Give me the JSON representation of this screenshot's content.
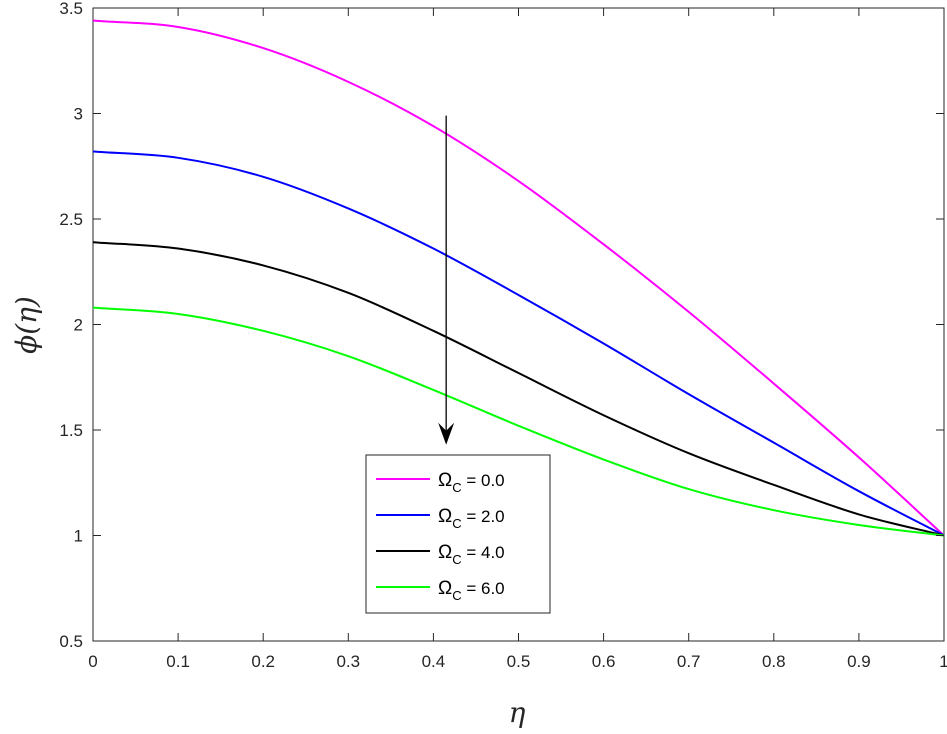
{
  "chart_data": {
    "type": "line",
    "title": "",
    "xlabel": "η",
    "ylabel": "ϕ(η)",
    "xlim": [
      0,
      1
    ],
    "ylim": [
      0.5,
      3.5
    ],
    "xticks": [
      0,
      0.1,
      0.2,
      0.3,
      0.4,
      0.5,
      0.6,
      0.7,
      0.8,
      0.9,
      1
    ],
    "xtick_labels": [
      "0",
      "0.1",
      "0.2",
      "0.3",
      "0.4",
      "0.5",
      "0.6",
      "0.7",
      "0.8",
      "0.9",
      "1"
    ],
    "yticks": [
      0.5,
      1,
      1.5,
      2,
      2.5,
      3,
      3.5
    ],
    "ytick_labels": [
      "0.5",
      "1",
      "1.5",
      "2",
      "2.5",
      "3",
      "3.5"
    ],
    "grid": false,
    "legend_position": "bottom-center",
    "x": [
      0,
      0.1,
      0.2,
      0.3,
      0.4,
      0.5,
      0.6,
      0.7,
      0.8,
      0.9,
      1
    ],
    "series": [
      {
        "name": "Ω",
        "subscript": "C",
        "value_text": " = 0.0",
        "color": "#ff00ff",
        "values": [
          3.44,
          3.41,
          3.31,
          3.15,
          2.94,
          2.68,
          2.38,
          2.06,
          1.72,
          1.37,
          1.0
        ]
      },
      {
        "name": "Ω",
        "subscript": "C",
        "value_text": " = 2.0",
        "color": "#0000ff",
        "values": [
          2.82,
          2.79,
          2.7,
          2.55,
          2.36,
          2.14,
          1.91,
          1.67,
          1.44,
          1.21,
          1.0
        ]
      },
      {
        "name": "Ω",
        "subscript": "C",
        "value_text": " = 4.0",
        "color": "#000000",
        "values": [
          2.39,
          2.36,
          2.28,
          2.15,
          1.97,
          1.77,
          1.57,
          1.39,
          1.24,
          1.1,
          1.0
        ]
      },
      {
        "name": "Ω",
        "subscript": "C",
        "value_text": " = 6.0",
        "color": "#00ff00",
        "values": [
          2.08,
          2.05,
          1.97,
          1.85,
          1.69,
          1.52,
          1.36,
          1.22,
          1.12,
          1.05,
          1.0
        ]
      }
    ],
    "annotation": {
      "type": "arrow",
      "x": 0.415,
      "y_start": 2.99,
      "y_end": 1.43
    }
  }
}
